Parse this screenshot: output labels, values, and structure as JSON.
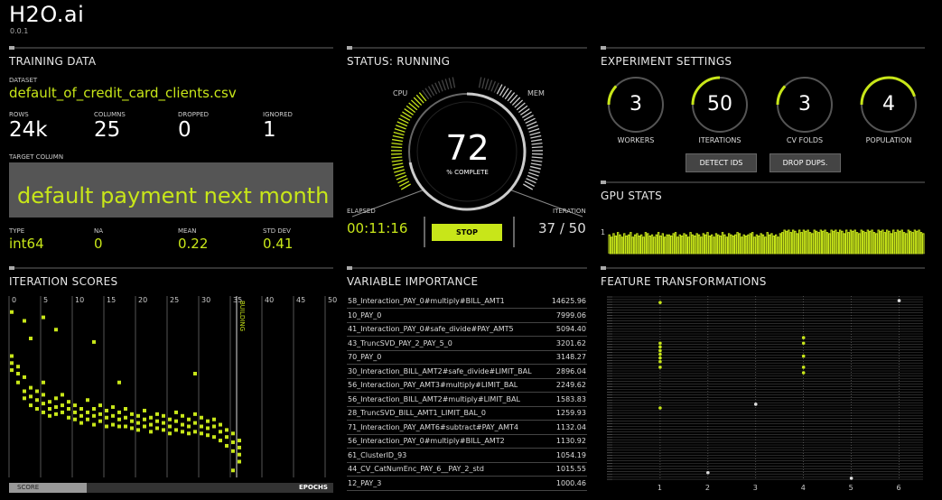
{
  "brand": {
    "name": "H2O.ai",
    "version": "0.0.1"
  },
  "colors": {
    "accent": "#c8e619",
    "bg": "#000000",
    "panel_gray": "#555555"
  },
  "training": {
    "title": "TRAINING DATA",
    "dataset_label": "DATASET",
    "dataset": "default_of_credit_card_clients.csv",
    "rows_label": "ROWS",
    "rows": "24k",
    "columns_label": "COLUMNS",
    "columns": "25",
    "dropped_label": "DROPPED",
    "dropped": "0",
    "ignored_label": "IGNORED",
    "ignored": "1",
    "target_label": "TARGET COLUMN",
    "target": "default payment next month",
    "type_label": "TYPE",
    "type": "int64",
    "na_label": "NA",
    "na": "0",
    "mean_label": "MEAN",
    "mean": "0.22",
    "std_label": "STD DEV",
    "std": "0.41"
  },
  "status": {
    "title": "STATUS: RUNNING",
    "cpu_label": "CPU",
    "mem_label": "MEM",
    "percent": "72",
    "percent_label": "% COMPLETE",
    "progress": 0.72,
    "cpu_level": 0.75,
    "mem_level": 0.85,
    "elapsed_label": "ELAPSED",
    "elapsed": "00:11:16",
    "iteration_label": "ITERATION",
    "iteration": "37 / 50",
    "stop_label": "STOP"
  },
  "settings": {
    "title": "EXPERIMENT SETTINGS",
    "rings": [
      {
        "value": "3",
        "label": "WORKERS",
        "fraction": 0.12
      },
      {
        "value": "50",
        "label": "ITERATIONS",
        "fraction": 0.25
      },
      {
        "value": "3",
        "label": "CV FOLDS",
        "fraction": 0.12
      },
      {
        "value": "4",
        "label": "POPULATION",
        "fraction": 0.45
      }
    ],
    "detect_ids_label": "DETECT IDS",
    "drop_dups_label": "DROP DUPS."
  },
  "gpu": {
    "title": "GPU STATS",
    "y_label": "1",
    "levels": [
      0.8,
      0.7,
      0.85,
      0.75,
      0.9,
      0.8,
      0.7,
      0.85,
      0.75,
      0.8,
      0.9,
      0.7,
      0.8,
      0.85,
      0.75,
      0.8,
      0.7,
      0.9,
      0.85,
      0.75,
      0.8,
      0.7,
      0.8,
      0.9,
      0.75,
      0.85,
      0.7,
      0.8,
      0.8,
      0.75,
      0.85,
      0.9,
      0.7,
      0.8,
      0.75,
      0.85,
      0.8,
      0.7,
      0.9,
      0.8,
      0.75,
      0.85,
      0.8,
      0.7,
      0.85,
      0.8,
      0.9,
      0.75,
      0.8,
      0.7,
      0.85,
      0.8,
      0.75,
      0.9,
      0.8,
      0.7,
      0.85,
      0.8,
      0.75,
      0.8,
      0.9,
      0.85,
      0.7,
      0.8,
      0.75,
      0.8,
      0.85,
      0.9,
      0.7,
      0.8,
      0.75,
      0.85,
      0.8,
      0.7,
      0.9,
      0.8,
      0.85,
      0.75,
      0.8,
      0.7,
      0.85,
      0.9,
      1.0,
      0.95,
      1.0,
      0.9,
      1.0,
      0.95,
      0.85,
      1.0,
      0.9,
      1.0,
      0.95,
      1.0,
      0.9,
      0.85,
      1.0,
      0.95,
      0.9,
      1.0,
      0.95,
      1.0,
      0.9,
      0.85,
      1.0,
      0.95,
      1.0,
      0.9,
      1.0,
      0.95,
      0.85,
      1.0,
      0.9,
      1.0,
      0.95,
      1.0,
      0.9,
      0.85,
      1.0,
      0.95,
      0.9,
      1.0,
      0.95,
      1.0,
      0.9,
      0.85,
      1.0,
      0.95,
      1.0,
      0.9,
      1.0,
      0.95,
      0.85,
      1.0,
      0.9,
      1.0,
      0.95,
      1.0,
      0.9,
      0.85,
      1.0,
      0.95,
      0.9,
      1.0,
      0.95,
      1.0,
      0.9,
      0.85
    ]
  },
  "iteration_scores": {
    "title": "ITERATION SCORES",
    "building_label": "BUILDING",
    "score_label": "SCORE",
    "epochs_label": "EPOCHS"
  },
  "variable_importance": {
    "title": "VARIABLE IMPORTANCE",
    "rows": [
      {
        "name": "58_Interaction_PAY_0#multiply#BILL_AMT1",
        "value": "14625.96"
      },
      {
        "name": "10_PAY_0",
        "value": "7999.06"
      },
      {
        "name": "41_Interaction_PAY_0#safe_divide#PAY_AMT5",
        "value": "5094.40"
      },
      {
        "name": "43_TruncSVD_PAY_2_PAY_5_0",
        "value": "3201.62"
      },
      {
        "name": "70_PAY_0",
        "value": "3148.27"
      },
      {
        "name": "30_Interaction_BILL_AMT2#safe_divide#LIMIT_BAL",
        "value": "2896.04"
      },
      {
        "name": "56_Interaction_PAY_AMT3#multiply#LIMIT_BAL",
        "value": "2249.62"
      },
      {
        "name": "56_Interaction_BILL_AMT2#multiply#LIMIT_BAL",
        "value": "1583.83"
      },
      {
        "name": "28_TruncSVD_BILL_AMT1_LIMIT_BAL_0",
        "value": "1259.93"
      },
      {
        "name": "71_Interaction_PAY_AMT6#subtract#PAY_AMT4",
        "value": "1132.04"
      },
      {
        "name": "56_Interaction_PAY_0#multiply#BILL_AMT2",
        "value": "1130.92"
      },
      {
        "name": "61_ClusterID_93",
        "value": "1054.19"
      },
      {
        "name": "44_CV_CatNumEnc_PAY_6__PAY_2_std",
        "value": "1015.55"
      },
      {
        "name": "12_PAY_3",
        "value": "1000.46"
      }
    ]
  },
  "feature_transformations": {
    "title": "FEATURE TRANSFORMATIONS"
  },
  "chart_data": [
    {
      "type": "scatter",
      "title": "ITERATION SCORES",
      "xlabel": "EPOCHS",
      "ylabel": "SCORE",
      "xlim": [
        0,
        50
      ],
      "ylim": [
        0,
        1
      ],
      "x_ticks": [
        0,
        5,
        10,
        15,
        20,
        25,
        30,
        35,
        40,
        45,
        50
      ],
      "building_at": 36,
      "points": [
        [
          0,
          0.7
        ],
        [
          0,
          0.66
        ],
        [
          0,
          0.62
        ],
        [
          1,
          0.64
        ],
        [
          1,
          0.6
        ],
        [
          1,
          0.55
        ],
        [
          2,
          0.58
        ],
        [
          2,
          0.5
        ],
        [
          2,
          0.46
        ],
        [
          3,
          0.52
        ],
        [
          3,
          0.47
        ],
        [
          3,
          0.42
        ],
        [
          4,
          0.5
        ],
        [
          4,
          0.45
        ],
        [
          4,
          0.4
        ],
        [
          5,
          0.55
        ],
        [
          5,
          0.48
        ],
        [
          5,
          0.43
        ],
        [
          5,
          0.38
        ],
        [
          6,
          0.44
        ],
        [
          6,
          0.4
        ],
        [
          6,
          0.36
        ],
        [
          7,
          0.46
        ],
        [
          7,
          0.41
        ],
        [
          7,
          0.37
        ],
        [
          8,
          0.48
        ],
        [
          8,
          0.42
        ],
        [
          8,
          0.38
        ],
        [
          9,
          0.44
        ],
        [
          9,
          0.4
        ],
        [
          9,
          0.35
        ],
        [
          10,
          0.42
        ],
        [
          10,
          0.38
        ],
        [
          10,
          0.34
        ],
        [
          11,
          0.4
        ],
        [
          11,
          0.36
        ],
        [
          11,
          0.32
        ],
        [
          12,
          0.45
        ],
        [
          12,
          0.38
        ],
        [
          12,
          0.34
        ],
        [
          13,
          0.4
        ],
        [
          13,
          0.36
        ],
        [
          13,
          0.31
        ],
        [
          14,
          0.42
        ],
        [
          14,
          0.37
        ],
        [
          14,
          0.33
        ],
        [
          15,
          0.39
        ],
        [
          15,
          0.35
        ],
        [
          15,
          0.3
        ],
        [
          16,
          0.41
        ],
        [
          16,
          0.36
        ],
        [
          16,
          0.31
        ],
        [
          17,
          0.38
        ],
        [
          17,
          0.34
        ],
        [
          17,
          0.3
        ],
        [
          18,
          0.4
        ],
        [
          18,
          0.35
        ],
        [
          18,
          0.3
        ],
        [
          19,
          0.37
        ],
        [
          19,
          0.33
        ],
        [
          19,
          0.29
        ],
        [
          20,
          0.36
        ],
        [
          20,
          0.32
        ],
        [
          20,
          0.28
        ],
        [
          21,
          0.39
        ],
        [
          21,
          0.34
        ],
        [
          21,
          0.3
        ],
        [
          22,
          0.35
        ],
        [
          22,
          0.31
        ],
        [
          22,
          0.27
        ],
        [
          23,
          0.37
        ],
        [
          23,
          0.33
        ],
        [
          23,
          0.29
        ],
        [
          24,
          0.36
        ],
        [
          24,
          0.32
        ],
        [
          24,
          0.28
        ],
        [
          25,
          0.34
        ],
        [
          25,
          0.3
        ],
        [
          25,
          0.26
        ],
        [
          26,
          0.38
        ],
        [
          26,
          0.33
        ],
        [
          26,
          0.28
        ],
        [
          27,
          0.36
        ],
        [
          27,
          0.31
        ],
        [
          27,
          0.27
        ],
        [
          28,
          0.34
        ],
        [
          28,
          0.3
        ],
        [
          28,
          0.26
        ],
        [
          29,
          0.37
        ],
        [
          29,
          0.32
        ],
        [
          29,
          0.27
        ],
        [
          30,
          0.35
        ],
        [
          30,
          0.3
        ],
        [
          30,
          0.26
        ],
        [
          31,
          0.33
        ],
        [
          31,
          0.29
        ],
        [
          31,
          0.25
        ],
        [
          32,
          0.34
        ],
        [
          32,
          0.3
        ],
        [
          32,
          0.24
        ],
        [
          33,
          0.31
        ],
        [
          33,
          0.27
        ],
        [
          33,
          0.22
        ],
        [
          34,
          0.28
        ],
        [
          34,
          0.24
        ],
        [
          34,
          0.19
        ],
        [
          35,
          0.26
        ],
        [
          35,
          0.21
        ],
        [
          35,
          0.16
        ],
        [
          36,
          0.22
        ],
        [
          36,
          0.18
        ],
        [
          36,
          0.14
        ],
        [
          36,
          0.1
        ],
        [
          2,
          0.9
        ],
        [
          5,
          0.92
        ],
        [
          7,
          0.85
        ],
        [
          3,
          0.8
        ],
        [
          13,
          0.78
        ],
        [
          17,
          0.55
        ],
        [
          29,
          0.6
        ],
        [
          35,
          0.05
        ],
        [
          0,
          0.95
        ]
      ]
    },
    {
      "type": "scatter",
      "title": "FEATURE TRANSFORMATIONS",
      "xlim": [
        0,
        6.5
      ],
      "x_ticks": [
        1,
        2,
        3,
        4,
        5,
        6
      ],
      "rows": 70,
      "points": [
        [
          1,
          0.25
        ],
        [
          1,
          0.27
        ],
        [
          1,
          0.29
        ],
        [
          1,
          0.31
        ],
        [
          1,
          0.33
        ],
        [
          1,
          0.35
        ],
        [
          1,
          0.38
        ],
        [
          1,
          0.03
        ],
        [
          1,
          0.6
        ],
        [
          4,
          0.22
        ],
        [
          4,
          0.25
        ],
        [
          4,
          0.32
        ],
        [
          4,
          0.38
        ],
        [
          4,
          0.41
        ],
        [
          6,
          0.02
        ],
        [
          3,
          0.58
        ],
        [
          5,
          0.98
        ],
        [
          2,
          0.95
        ]
      ]
    }
  ]
}
